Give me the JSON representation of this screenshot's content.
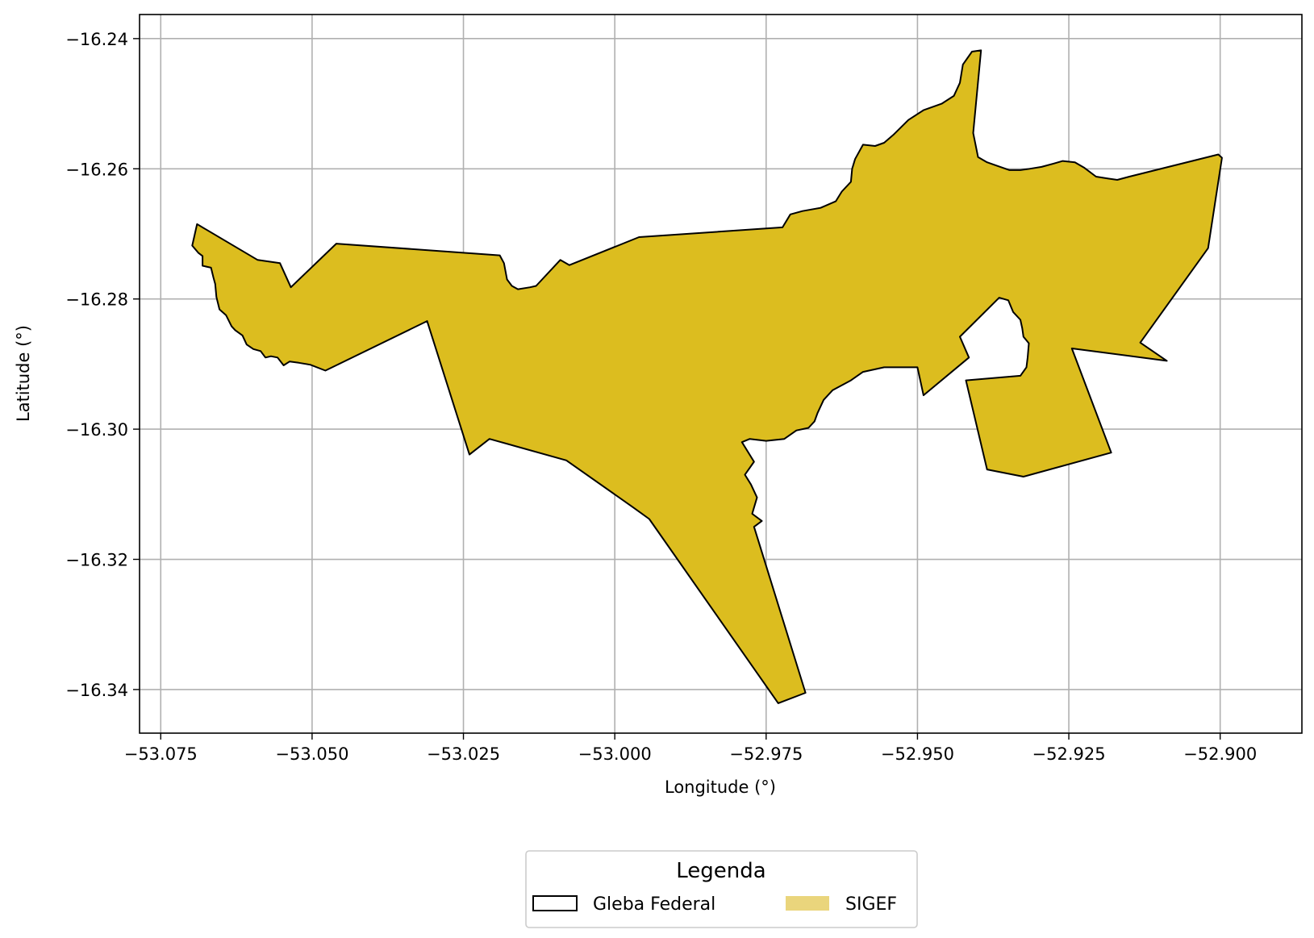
{
  "chart_data": {
    "type": "map",
    "xlabel": "Longitude (°)",
    "ylabel": "Latitude (°)",
    "xlim": [
      -53.0785,
      -52.8865
    ],
    "ylim": [
      -16.3467,
      -16.2363
    ],
    "xticks": [
      -53.075,
      -53.05,
      -53.025,
      -53.0,
      -52.975,
      -52.95,
      -52.925,
      -52.9
    ],
    "xtick_labels": [
      "−53.075",
      "−53.050",
      "−53.025",
      "−53.000",
      "−52.975",
      "−52.950",
      "−52.925",
      "−52.900"
    ],
    "yticks": [
      -16.24,
      -16.26,
      -16.28,
      -16.3,
      -16.32,
      -16.34
    ],
    "ytick_labels": [
      "−16.24",
      "−16.26",
      "−16.28",
      "−16.30",
      "−16.32",
      "−16.34"
    ],
    "grid": true,
    "legend": {
      "title": "Legenda",
      "placement": "bottom-center",
      "entries": [
        {
          "label": "Gleba Federal",
          "style": "outline",
          "color": "#000000"
        },
        {
          "label": "SIGEF",
          "style": "fill",
          "color": "#ead57c"
        }
      ]
    },
    "polygon_fill": "#dcbd1f",
    "polygon_stroke": "#000000",
    "polygon": [
      [
        -53.0698,
        -16.2718
      ],
      [
        -53.0688,
        -16.2729
      ],
      [
        -53.0681,
        -16.2734
      ],
      [
        -53.0681,
        -16.2749
      ],
      [
        -53.0667,
        -16.2752
      ],
      [
        -53.0663,
        -16.2767
      ],
      [
        -53.066,
        -16.2777
      ],
      [
        -53.0658,
        -16.2797
      ],
      [
        -53.0653,
        -16.2816
      ],
      [
        -53.0642,
        -16.2825
      ],
      [
        -53.0633,
        -16.2842
      ],
      [
        -53.0627,
        -16.2848
      ],
      [
        -53.0615,
        -16.2856
      ],
      [
        -53.0608,
        -16.287
      ],
      [
        -53.0597,
        -16.2877
      ],
      [
        -53.0585,
        -16.288
      ],
      [
        -53.0577,
        -16.289
      ],
      [
        -53.0568,
        -16.2888
      ],
      [
        -53.0557,
        -16.289
      ],
      [
        -53.0547,
        -16.2902
      ],
      [
        -53.0537,
        -16.2896
      ],
      [
        -53.0522,
        -16.2898
      ],
      [
        -53.0503,
        -16.2901
      ],
      [
        -53.0478,
        -16.291
      ],
      [
        -53.031,
        -16.2834
      ],
      [
        -53.024,
        -16.3039
      ],
      [
        -53.0207,
        -16.3015
      ],
      [
        -53.008,
        -16.3048
      ],
      [
        -52.997,
        -16.312
      ],
      [
        -52.9943,
        -16.3138
      ],
      [
        -52.973,
        -16.3421
      ],
      [
        -52.9685,
        -16.3405
      ],
      [
        -52.977,
        -16.315
      ],
      [
        -52.9757,
        -16.3141
      ],
      [
        -52.9773,
        -16.313
      ],
      [
        -52.9765,
        -16.3105
      ],
      [
        -52.9775,
        -16.3085
      ],
      [
        -52.9785,
        -16.307
      ],
      [
        -52.977,
        -16.305
      ],
      [
        -52.979,
        -16.302
      ],
      [
        -52.9777,
        -16.3015
      ],
      [
        -52.975,
        -16.3018
      ],
      [
        -52.972,
        -16.3015
      ],
      [
        -52.97,
        -16.3002
      ],
      [
        -52.968,
        -16.2998
      ],
      [
        -52.967,
        -16.2988
      ],
      [
        -52.9665,
        -16.2975
      ],
      [
        -52.9655,
        -16.2955
      ],
      [
        -52.964,
        -16.294
      ],
      [
        -52.961,
        -16.2925
      ],
      [
        -52.959,
        -16.2912
      ],
      [
        -52.9555,
        -16.2905
      ],
      [
        -52.953,
        -16.2905
      ],
      [
        -52.95,
        -16.2905
      ],
      [
        -52.949,
        -16.2948
      ],
      [
        -52.9415,
        -16.289
      ],
      [
        -52.943,
        -16.2858
      ],
      [
        -52.9365,
        -16.2798
      ],
      [
        -52.935,
        -16.2802
      ],
      [
        -52.9342,
        -16.282
      ],
      [
        -52.933,
        -16.2832
      ],
      [
        -52.9327,
        -16.2845
      ],
      [
        -52.9325,
        -16.2858
      ],
      [
        -52.9316,
        -16.2868
      ],
      [
        -52.9318,
        -16.289
      ],
      [
        -52.932,
        -16.2905
      ],
      [
        -52.933,
        -16.2918
      ],
      [
        -52.942,
        -16.2925
      ],
      [
        -52.9385,
        -16.3062
      ],
      [
        -52.9325,
        -16.3073
      ],
      [
        -52.918,
        -16.3036
      ],
      [
        -52.9245,
        -16.2876
      ],
      [
        -52.9088,
        -16.2895
      ],
      [
        -52.9132,
        -16.2867
      ],
      [
        -52.902,
        -16.2722
      ],
      [
        -52.8997,
        -16.2583
      ],
      [
        -52.9003,
        -16.2578
      ],
      [
        -52.915,
        -16.2612
      ],
      [
        -52.917,
        -16.2617
      ],
      [
        -52.9185,
        -16.2615
      ],
      [
        -52.9205,
        -16.2612
      ],
      [
        -52.9225,
        -16.2598
      ],
      [
        -52.924,
        -16.259
      ],
      [
        -52.926,
        -16.2588
      ],
      [
        -52.9275,
        -16.2592
      ],
      [
        -52.9295,
        -16.2597
      ],
      [
        -52.9315,
        -16.26
      ],
      [
        -52.933,
        -16.2602
      ],
      [
        -52.9348,
        -16.2602
      ],
      [
        -52.937,
        -16.2595
      ],
      [
        -52.9385,
        -16.259
      ],
      [
        -52.94,
        -16.2582
      ],
      [
        -52.9408,
        -16.2545
      ],
      [
        -52.9395,
        -16.2418
      ],
      [
        -52.941,
        -16.242
      ],
      [
        -52.9425,
        -16.244
      ],
      [
        -52.943,
        -16.2468
      ],
      [
        -52.944,
        -16.2488
      ],
      [
        -52.946,
        -16.25
      ],
      [
        -52.949,
        -16.251
      ],
      [
        -52.9515,
        -16.2525
      ],
      [
        -52.954,
        -16.2548
      ],
      [
        -52.9555,
        -16.256
      ],
      [
        -52.957,
        -16.2565
      ],
      [
        -52.959,
        -16.2563
      ],
      [
        -52.9603,
        -16.2585
      ],
      [
        -52.9608,
        -16.26
      ],
      [
        -52.961,
        -16.262
      ],
      [
        -52.9625,
        -16.2635
      ],
      [
        -52.9635,
        -16.265
      ],
      [
        -52.966,
        -16.266
      ],
      [
        -52.969,
        -16.2665
      ],
      [
        -52.971,
        -16.267
      ],
      [
        -52.9723,
        -16.269
      ],
      [
        -52.996,
        -16.2705
      ],
      [
        -53.0075,
        -16.2748
      ],
      [
        -53.009,
        -16.274
      ],
      [
        -53.013,
        -16.278
      ],
      [
        -53.014,
        -16.2782
      ],
      [
        -53.016,
        -16.2785
      ],
      [
        -53.017,
        -16.278
      ],
      [
        -53.0178,
        -16.277
      ],
      [
        -53.0183,
        -16.2745
      ],
      [
        -53.019,
        -16.2733
      ],
      [
        -53.046,
        -16.2715
      ],
      [
        -53.0535,
        -16.2782
      ],
      [
        -53.0553,
        -16.2745
      ],
      [
        -53.059,
        -16.274
      ],
      [
        -53.069,
        -16.2685
      ]
    ]
  }
}
